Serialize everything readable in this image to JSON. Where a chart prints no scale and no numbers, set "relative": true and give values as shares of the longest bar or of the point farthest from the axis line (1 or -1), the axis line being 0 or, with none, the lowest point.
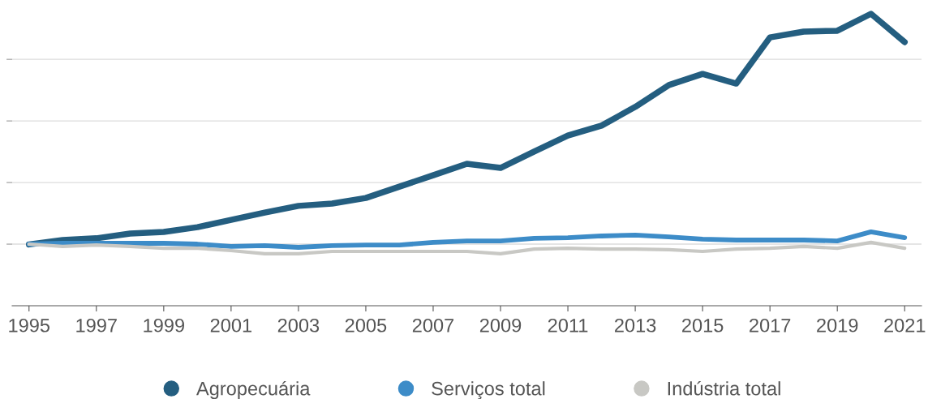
{
  "chart_data": {
    "type": "line",
    "relative": true,
    "x": [
      1995,
      1996,
      1997,
      1998,
      1999,
      2000,
      2001,
      2002,
      2003,
      2004,
      2005,
      2006,
      2007,
      2008,
      2009,
      2010,
      2011,
      2012,
      2013,
      2014,
      2015,
      2016,
      2017,
      2018,
      2019,
      2020,
      2021
    ],
    "xlim": [
      1994.5,
      2021.5
    ],
    "xticks": [
      1995,
      1997,
      1999,
      2001,
      2003,
      2005,
      2007,
      2009,
      2011,
      2013,
      2015,
      2017,
      2019,
      2021
    ],
    "series": [
      {
        "name": "Agropecuária",
        "color": "#245e80",
        "values": [
          0.21,
          0.225,
          0.231,
          0.247,
          0.253,
          0.269,
          0.294,
          0.319,
          0.342,
          0.35,
          0.369,
          0.408,
          0.447,
          0.486,
          0.472,
          0.528,
          0.583,
          0.617,
          0.681,
          0.756,
          0.794,
          0.761,
          0.919,
          0.939,
          0.942,
          1.0,
          0.903
        ]
      },
      {
        "name": "Serviços total",
        "color": "#3d8cc8",
        "values": [
          0.211,
          0.214,
          0.214,
          0.214,
          0.214,
          0.211,
          0.203,
          0.206,
          0.2,
          0.206,
          0.208,
          0.208,
          0.217,
          0.222,
          0.222,
          0.231,
          0.233,
          0.239,
          0.242,
          0.236,
          0.228,
          0.225,
          0.225,
          0.225,
          0.222,
          0.253,
          0.233
        ]
      },
      {
        "name": "Indústria total",
        "color": "#c8c8c4",
        "values": [
          0.211,
          0.203,
          0.208,
          0.203,
          0.197,
          0.197,
          0.189,
          0.178,
          0.178,
          0.186,
          0.186,
          0.186,
          0.186,
          0.186,
          0.178,
          0.194,
          0.197,
          0.194,
          0.194,
          0.192,
          0.186,
          0.194,
          0.197,
          0.203,
          0.197,
          0.217,
          0.197
        ]
      }
    ],
    "grid": "y",
    "legend": "bottom",
    "tick_labels": "x",
    "line_style": "solid",
    "marker": "none"
  }
}
